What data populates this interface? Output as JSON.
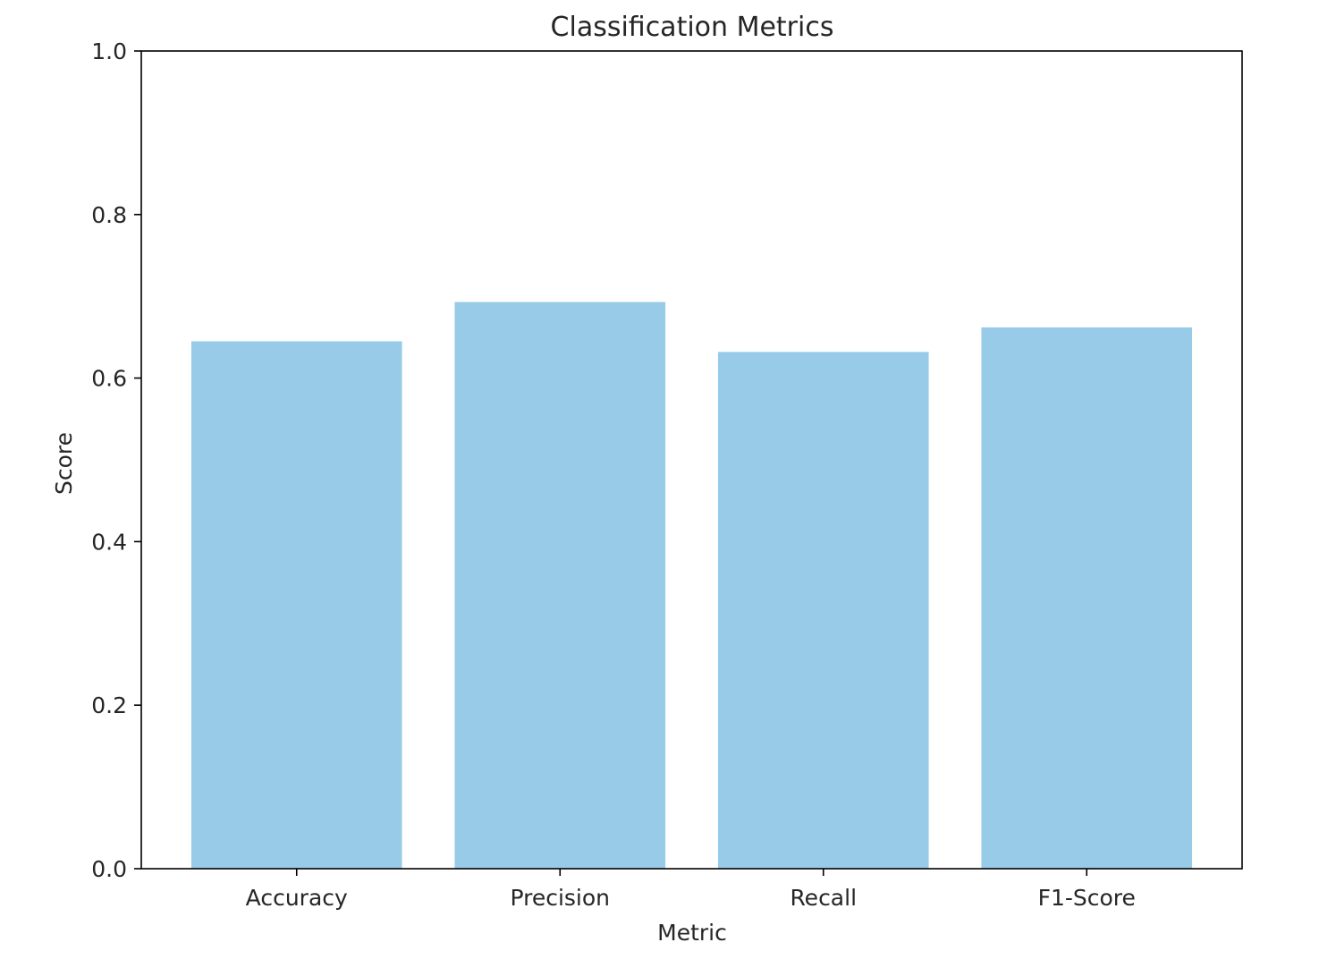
{
  "chart_data": {
    "type": "bar",
    "title": "Classification Metrics",
    "xlabel": "Metric",
    "ylabel": "Score",
    "categories": [
      "Accuracy",
      "Precision",
      "Recall",
      "F1-Score"
    ],
    "values": [
      0.645,
      0.693,
      0.632,
      0.662
    ],
    "ylim": [
      0,
      1.0
    ],
    "yticks": [
      "0.0",
      "0.2",
      "0.4",
      "0.6",
      "0.8",
      "1.0"
    ],
    "bar_color": "#98cbe7",
    "grid": false,
    "legend": "none"
  }
}
